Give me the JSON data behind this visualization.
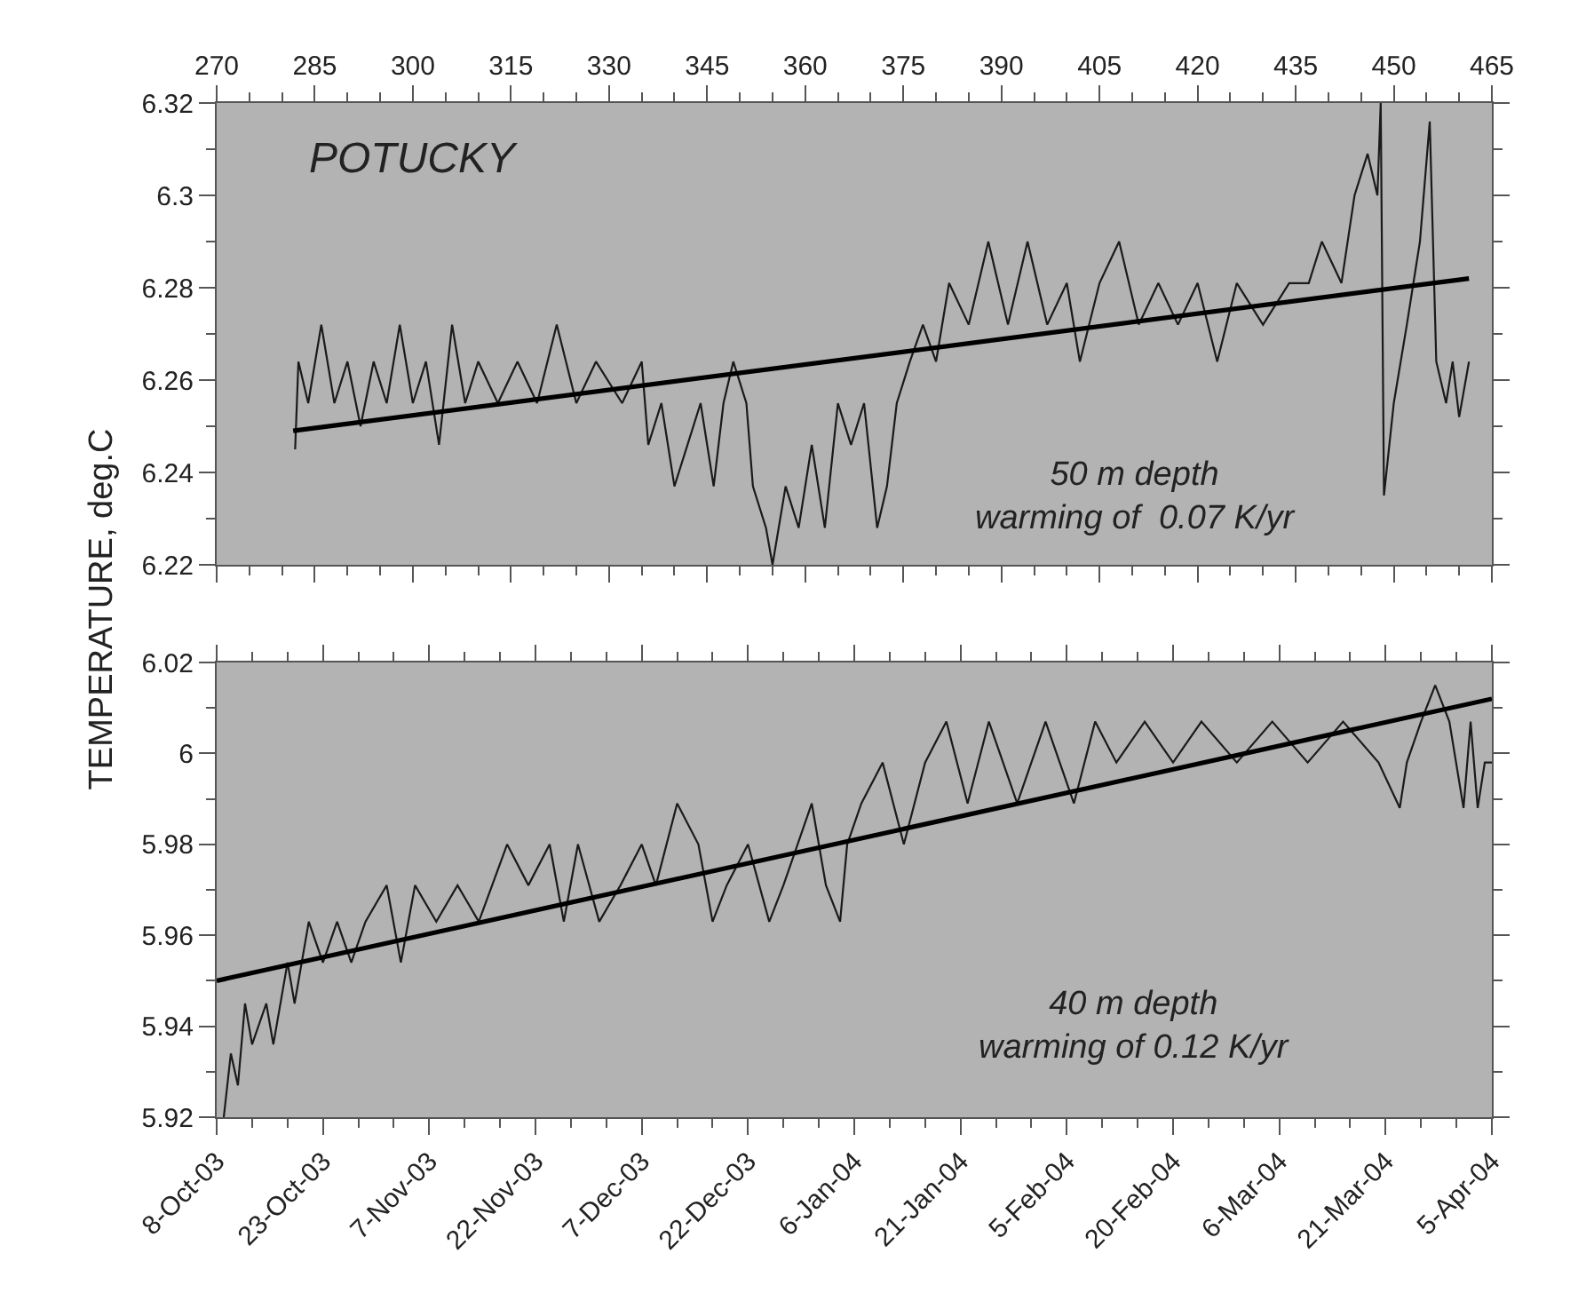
{
  "chart_data": [
    {
      "type": "line",
      "ylabel": "TEMPERATURE, deg.C",
      "xlim": [
        270,
        465
      ],
      "xticks": [
        270,
        285,
        300,
        315,
        330,
        345,
        360,
        375,
        390,
        405,
        420,
        435,
        450,
        465
      ],
      "ylim": [
        6.22,
        6.32
      ],
      "yticks": [
        6.22,
        6.24,
        6.26,
        6.28,
        6.3,
        6.32
      ],
      "grid": false,
      "marker": "none",
      "line_style": "solid",
      "annotations": [
        "POTUCKY",
        "50 m depth\nwarming of  0.07 K/yr"
      ],
      "series": [
        {
          "color": "#1a1a1a",
          "x": [
            282,
            282.5,
            284,
            286,
            288,
            290,
            292,
            294,
            296,
            298,
            300,
            302,
            304,
            306,
            308,
            310,
            313,
            316,
            319,
            322,
            325,
            328,
            332,
            335,
            336,
            338,
            340,
            342,
            344,
            346,
            347.5,
            349,
            351,
            352,
            354,
            355,
            357,
            359,
            361,
            363,
            365,
            367,
            369,
            371,
            372.5,
            374,
            376,
            378,
            380,
            382,
            385,
            388,
            391,
            394,
            397,
            400,
            402,
            405,
            408,
            411,
            414,
            417,
            420,
            423,
            426,
            430,
            434,
            437,
            439,
            442,
            444,
            446,
            447.5,
            448,
            448.5,
            450,
            452,
            454,
            455.5,
            456.5,
            458,
            459,
            460,
            461.5
          ],
          "values": [
            6.245,
            6.264,
            6.255,
            6.272,
            6.255,
            6.264,
            6.25,
            6.264,
            6.255,
            6.272,
            6.255,
            6.264,
            6.246,
            6.272,
            6.255,
            6.264,
            6.255,
            6.264,
            6.255,
            6.272,
            6.255,
            6.264,
            6.255,
            6.264,
            6.246,
            6.255,
            6.237,
            6.246,
            6.255,
            6.237,
            6.255,
            6.264,
            6.255,
            6.237,
            6.228,
            6.22,
            6.237,
            6.228,
            6.246,
            6.228,
            6.255,
            6.246,
            6.255,
            6.228,
            6.237,
            6.255,
            6.264,
            6.272,
            6.264,
            6.281,
            6.272,
            6.29,
            6.272,
            6.29,
            6.272,
            6.281,
            6.264,
            6.281,
            6.29,
            6.272,
            6.281,
            6.272,
            6.281,
            6.264,
            6.281,
            6.272,
            6.281,
            6.281,
            6.29,
            6.281,
            6.3,
            6.309,
            6.3,
            6.32,
            6.235,
            6.255,
            6.272,
            6.29,
            6.316,
            6.264,
            6.255,
            6.264,
            6.252,
            6.264
          ]
        },
        {
          "type": "line",
          "color": "#000000",
          "x": [
            281.7,
            461.5
          ],
          "values": [
            6.249,
            6.282
          ]
        }
      ]
    },
    {
      "type": "line",
      "xlim": [
        "2003-10-08",
        "2004-04-05"
      ],
      "xticks": [
        {
          "value": "2003-10-08",
          "label": "8-Oct-03"
        },
        {
          "value": "2003-10-23",
          "label": "23-Oct-03"
        },
        {
          "value": "2003-11-07",
          "label": "7-Nov-03"
        },
        {
          "value": "2003-11-22",
          "label": "22-Nov-03"
        },
        {
          "value": "2003-12-07",
          "label": "7-Dec-03"
        },
        {
          "value": "2003-12-22",
          "label": "22-Dec-03"
        },
        {
          "value": "2004-01-06",
          "label": "6-Jan-04"
        },
        {
          "value": "2004-01-21",
          "label": "21-Jan-04"
        },
        {
          "value": "2004-02-05",
          "label": "5-Feb-04"
        },
        {
          "value": "2004-02-20",
          "label": "20-Feb-04"
        },
        {
          "value": "2004-03-06",
          "label": "6-Mar-04"
        },
        {
          "value": "2004-03-21",
          "label": "21-Mar-04"
        },
        {
          "value": "2004-04-05",
          "label": "5-Apr-04"
        }
      ],
      "ylim": [
        5.92,
        6.02
      ],
      "yticks": [
        5.92,
        5.94,
        5.96,
        5.98,
        6,
        6.02
      ],
      "grid": false,
      "marker": "none",
      "line_style": "solid",
      "annotations": [
        "40 m depth\nwarming of 0.12 K/yr"
      ],
      "series": [
        {
          "color": "#1a1a1a",
          "x": [
            "2003-10-09",
            "2003-10-10",
            "2003-10-11",
            "2003-10-12",
            "2003-10-13",
            "2003-10-15",
            "2003-10-16",
            "2003-10-18",
            "2003-10-19",
            "2003-10-21",
            "2003-10-23",
            "2003-10-25",
            "2003-10-27",
            "2003-10-29",
            "2003-11-01",
            "2003-11-03",
            "2003-11-05",
            "2003-11-08",
            "2003-11-11",
            "2003-11-14",
            "2003-11-18",
            "2003-11-21",
            "2003-11-24",
            "2003-11-26",
            "2003-11-28",
            "2003-12-01",
            "2003-12-04",
            "2003-12-07",
            "2003-12-09",
            "2003-12-12",
            "2003-12-15",
            "2003-12-17",
            "2003-12-19",
            "2003-12-22",
            "2003-12-25",
            "2003-12-27",
            "2003-12-29",
            "2003-12-31",
            "2004-01-02",
            "2004-01-04",
            "2004-01-05",
            "2004-01-07",
            "2004-01-10",
            "2004-01-13",
            "2004-01-16",
            "2004-01-19",
            "2004-01-22",
            "2004-01-25",
            "2004-01-29",
            "2004-02-02",
            "2004-02-06",
            "2004-02-09",
            "2004-02-12",
            "2004-02-16",
            "2004-02-20",
            "2004-02-24",
            "2004-02-29",
            "2004-03-05",
            "2004-03-10",
            "2004-03-15",
            "2004-03-20",
            "2004-03-23",
            "2004-03-24",
            "2004-03-26",
            "2004-03-28",
            "2004-03-30",
            "2004-04-01",
            "2004-04-02",
            "2004-04-03",
            "2004-04-04",
            "2004-04-05"
          ],
          "values": [
            5.92,
            5.934,
            5.927,
            5.945,
            5.936,
            5.945,
            5.936,
            5.954,
            5.945,
            5.963,
            5.954,
            5.963,
            5.954,
            5.963,
            5.971,
            5.954,
            5.971,
            5.963,
            5.971,
            5.963,
            5.98,
            5.971,
            5.98,
            5.963,
            5.98,
            5.963,
            5.971,
            5.98,
            5.971,
            5.989,
            5.98,
            5.963,
            5.971,
            5.98,
            5.963,
            5.971,
            5.98,
            5.989,
            5.971,
            5.963,
            5.98,
            5.989,
            5.998,
            5.98,
            5.998,
            6.007,
            5.989,
            6.007,
            5.989,
            6.007,
            5.989,
            6.007,
            5.998,
            6.007,
            5.998,
            6.007,
            5.998,
            6.007,
            5.998,
            6.007,
            5.998,
            5.988,
            5.998,
            6.007,
            6.015,
            6.007,
            5.988,
            6.007,
            5.988,
            5.998,
            5.998
          ]
        },
        {
          "type": "line",
          "color": "#000000",
          "x": [
            "2003-10-08",
            "2004-04-05"
          ],
          "values": [
            5.95,
            6.012
          ]
        }
      ]
    }
  ]
}
